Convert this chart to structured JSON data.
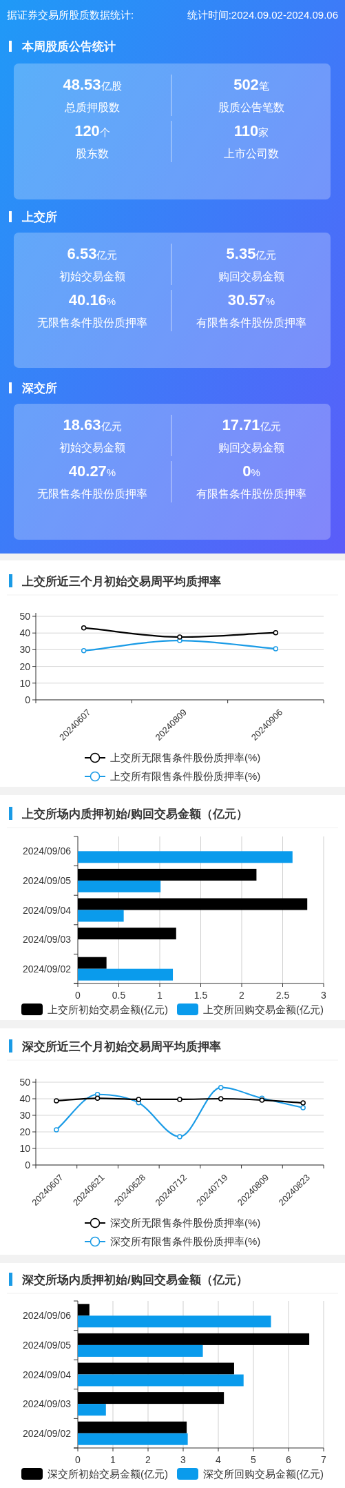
{
  "chart_data": [
    {
      "type": "other",
      "title": "据证券交易所股质数据统计:",
      "subtitle": "统计时间:2024.09.02-2024.09.06"
    },
    {
      "type": "other",
      "title": "本周股质公告统计",
      "annotations": [
        "48.53亿股",
        "总质押股数",
        "502笔",
        "股质公告笔数",
        "120个",
        "股东数",
        "110家",
        "上市公司数"
      ]
    },
    {
      "type": "other",
      "title": "上交所",
      "annotations": [
        "6.53亿元",
        "初始交易金额",
        "5.35亿元",
        "购回交易金额",
        "40.16%",
        "无限售条件股份质押率",
        "30.57%",
        "有限售条件股份质押率"
      ]
    },
    {
      "type": "other",
      "title": "深交所",
      "annotations": [
        "18.63亿元",
        "初始交易金额",
        "17.71亿元",
        "购回交易金额",
        "40.27%",
        "无限售条件股份质押率",
        "0%",
        "有限售条件股份质押率"
      ]
    },
    {
      "type": "line",
      "title": "上交所近三个月初始交易周平均质押率",
      "categories": [
        "20240607",
        "20240809",
        "20240906"
      ],
      "series": [
        {
          "name": "上交所无限售条件股份质押率(%)",
          "color": "#000000",
          "values": [
            43.1,
            37.6,
            40.2
          ]
        },
        {
          "name": "上交所有限售条件股份质押率(%)",
          "color": "#1a9be6",
          "values": [
            29.4,
            35.5,
            30.6
          ]
        }
      ],
      "ylim": [
        0,
        50
      ],
      "yticks": [
        0,
        10,
        20,
        30,
        40,
        50
      ],
      "grid": "y",
      "legend": "bottom",
      "marker": "circle"
    },
    {
      "type": "bar",
      "orientation": "horizontal",
      "title": "上交所场内质押初始/购回交易金额（亿元）",
      "categories": [
        "2024/09/06",
        "2024/09/05",
        "2024/09/04",
        "2024/09/03",
        "2024/09/02"
      ],
      "series": [
        {
          "name": "上交所初始交易金额(亿元)",
          "color": "#000000",
          "values": [
            0,
            2.18,
            2.8,
            1.2,
            0.35
          ]
        },
        {
          "name": "上交所回购交易金额(亿元)",
          "color": "#0a9bec",
          "values": [
            2.62,
            1.01,
            0.56,
            0,
            1.16
          ]
        }
      ],
      "xlim": [
        0,
        3
      ],
      "xticks": [
        0,
        0.5,
        1,
        1.5,
        2,
        2.5,
        3
      ],
      "grid": "x",
      "legend": "bottom"
    },
    {
      "type": "line",
      "title": "深交所近三个月初始交易周平均质押率",
      "categories": [
        "20240607",
        "20240621",
        "20240628",
        "20240712",
        "20240719",
        "20240809",
        "20240823"
      ],
      "series": [
        {
          "name": "深交所无限售条件股份质押率(%)",
          "color": "#000000",
          "values": [
            38.8,
            40.3,
            39.6,
            39.6,
            40,
            39.2,
            37.5
          ]
        },
        {
          "name": "深交所有限售条件股份质押率(%)",
          "color": "#1a9be6",
          "values": [
            21.3,
            42.6,
            37.6,
            17.1,
            46.8,
            40.3,
            34.6
          ]
        }
      ],
      "ylim": [
        0,
        50
      ],
      "yticks": [
        0,
        10,
        20,
        30,
        40,
        50
      ],
      "grid": "y",
      "legend": "bottom",
      "marker": "circle"
    },
    {
      "type": "bar",
      "orientation": "horizontal",
      "title": "深交所场内质押初始/购回交易金额（亿元）",
      "categories": [
        "2024/09/06",
        "2024/09/05",
        "2024/09/04",
        "2024/09/03",
        "2024/09/02"
      ],
      "series": [
        {
          "name": "深交所初始交易金额(亿元)",
          "color": "#000000",
          "values": [
            0.33,
            6.59,
            4.45,
            4.16,
            3.1
          ]
        },
        {
          "name": "深交所回购交易金额(亿元)",
          "color": "#0a9bec",
          "values": [
            5.5,
            3.56,
            4.72,
            0.8,
            3.13
          ]
        }
      ],
      "xlim": [
        0,
        7
      ],
      "xticks": [
        0,
        1,
        2,
        3,
        4,
        5,
        6,
        7
      ],
      "grid": "x",
      "legend": "bottom"
    }
  ]
}
